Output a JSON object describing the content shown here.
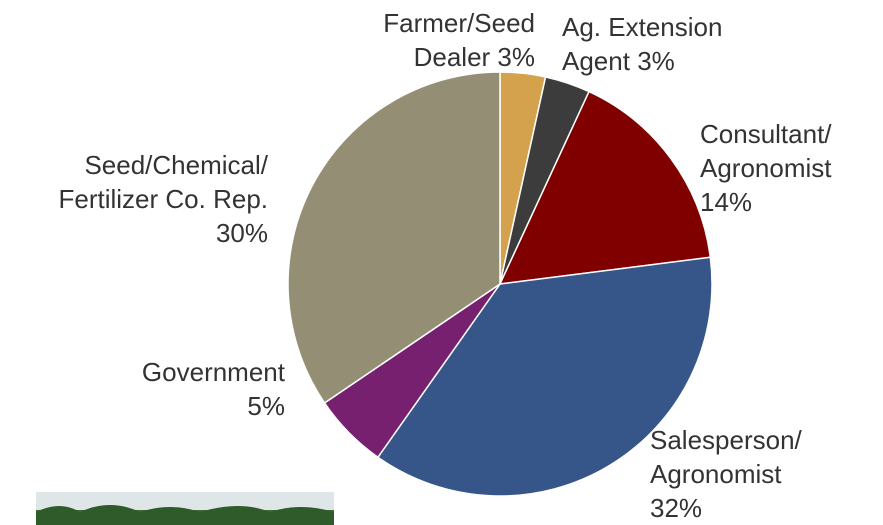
{
  "chart_data": {
    "type": "pie",
    "categories": [
      "Farmer/Seed Dealer",
      "Ag. Extension Agent",
      "Consultant/ Agronomist",
      "Salesperson/ Agronomist",
      "Government",
      "Seed/Chemical/ Fertilizer Co. Rep."
    ],
    "values": [
      3,
      3,
      14,
      32,
      5,
      30
    ],
    "value_labels": [
      "3%",
      "3%",
      "14%",
      "32%",
      "5%",
      "30%"
    ],
    "colors": [
      "#d4a24c",
      "#3c3c3c",
      "#800000",
      "#36568a",
      "#76206f",
      "#948e74"
    ]
  }
}
